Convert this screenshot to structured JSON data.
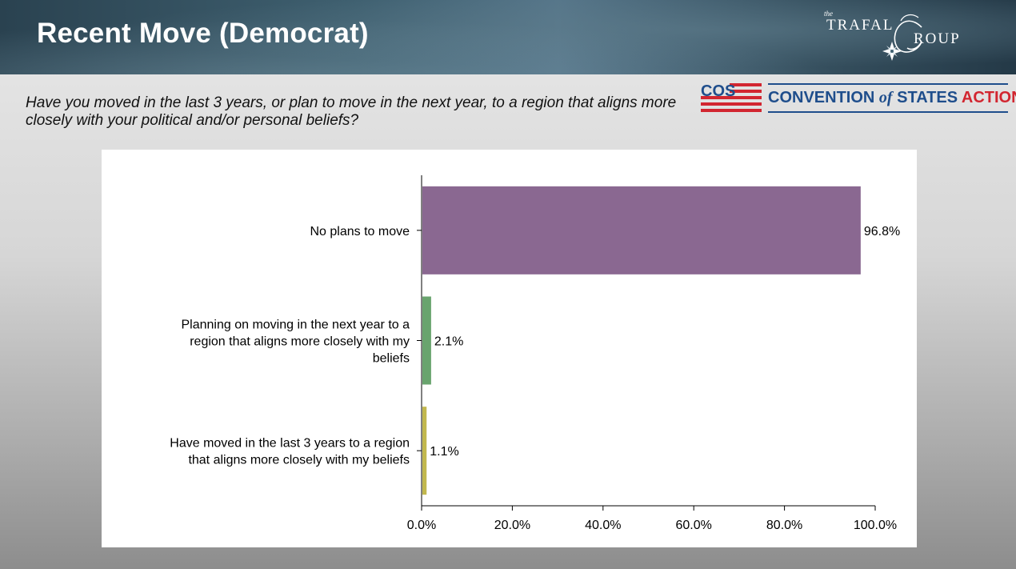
{
  "header": {
    "title": "Recent Move (Democrat)"
  },
  "branding": {
    "trafalgar": {
      "small": "the",
      "word1": "TRAFAL",
      "word2": "ROUP",
      "icon": "compass-rose-icon"
    },
    "cos": {
      "mark": "COS",
      "name_part1": "CONVENTION ",
      "name_of": "of",
      "name_part2": " STATES ",
      "name_action": "ACTION",
      "icon": "flag-stripes-icon",
      "colors": {
        "blue": "#1f4e8c",
        "red": "#d22630"
      }
    }
  },
  "question": "Have you moved in the last 3 years, or plan to move in the next year, to a region that aligns more closely with your political and/or personal beliefs?",
  "chart_data": {
    "type": "bar",
    "orientation": "horizontal",
    "categories": [
      [
        "No plans to move"
      ],
      [
        "Planning on moving in the next year to a",
        "region that aligns more closely with my",
        "beliefs"
      ],
      [
        "Have moved in the last 3 years to a region",
        "that aligns more closely with my beliefs"
      ]
    ],
    "values": [
      96.8,
      2.1,
      1.1
    ],
    "value_labels": [
      "96.8%",
      "2.1%",
      "1.1%"
    ],
    "colors": [
      "#8a6891",
      "#69a46e",
      "#c2b84e"
    ],
    "xlim": [
      0,
      100
    ],
    "xticks": [
      0,
      20,
      40,
      60,
      80,
      100
    ],
    "xtick_labels": [
      "0.0%",
      "20.0%",
      "40.0%",
      "60.0%",
      "80.0%",
      "100.0%"
    ],
    "title": "",
    "xlabel": "",
    "ylabel": "",
    "grid": false,
    "legend": "none"
  }
}
